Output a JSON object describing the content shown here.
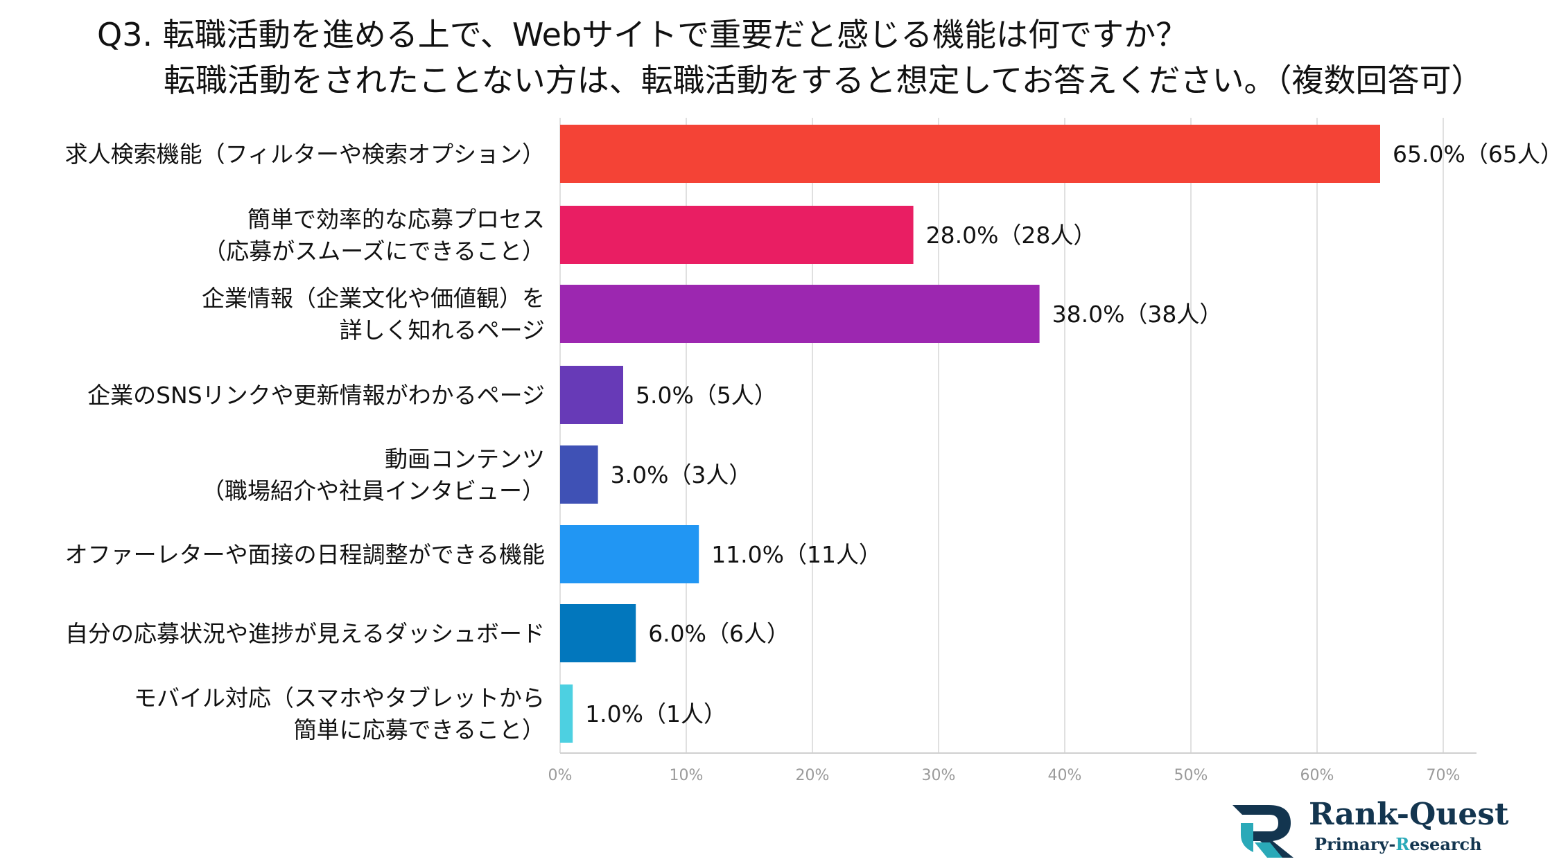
{
  "title": {
    "line1": "Q3. 転職活動を進める上で、Webサイトで重要だと感じる機能は何ですか？",
    "line2": "転職活動をされたことない方は、転職活動をすると想定してお答えください。（複数回答可）"
  },
  "chart_data": {
    "type": "bar",
    "orientation": "horizontal",
    "categories": [
      [
        "求人検索機能（フィルターや検索オプション）"
      ],
      [
        "簡単で効率的な応募プロセス",
        "（応募がスムーズにできること）"
      ],
      [
        "企業情報（企業文化や価値観）を",
        "詳しく知れるページ"
      ],
      [
        "企業のSNSリンクや更新情報がわかるページ"
      ],
      [
        "動画コンテンツ",
        "（職場紹介や社員インタビュー）"
      ],
      [
        "オファーレターや面接の日程調整ができる機能"
      ],
      [
        "自分の応募状況や進捗が見えるダッシュボード"
      ],
      [
        "モバイル対応（スマホやタブレットから",
        "簡単に応募できること）"
      ]
    ],
    "values": [
      65.0,
      28.0,
      38.0,
      5.0,
      3.0,
      11.0,
      6.0,
      1.0
    ],
    "value_labels": [
      "65.0%（65人）",
      "28.0%（28人）",
      "38.0%（38人）",
      "5.0%（5人）",
      "3.0%（3人）",
      "11.0%（11人）",
      "6.0%（6人）",
      "1.0%（1人）"
    ],
    "colors": [
      "#f44336",
      "#e91e63",
      "#9c27b0",
      "#673ab7",
      "#3f51b5",
      "#2196f3",
      "#0277bd",
      "#4dd0e1"
    ],
    "xlim": [
      0,
      70
    ],
    "xticks": [
      0,
      10,
      20,
      30,
      40,
      50,
      60,
      70
    ],
    "xtick_labels": [
      "0%",
      "10%",
      "20%",
      "30%",
      "40%",
      "50%",
      "60%",
      "70%"
    ],
    "grid": true,
    "xlabel": "",
    "ylabel": ""
  },
  "logo": {
    "name": "Rank-Quest",
    "sub_prefix": "Primary-",
    "sub_accent": "R",
    "sub_suffix": "esearch",
    "colors": {
      "dark": "#13354f",
      "accent": "#2aa9b8"
    }
  }
}
